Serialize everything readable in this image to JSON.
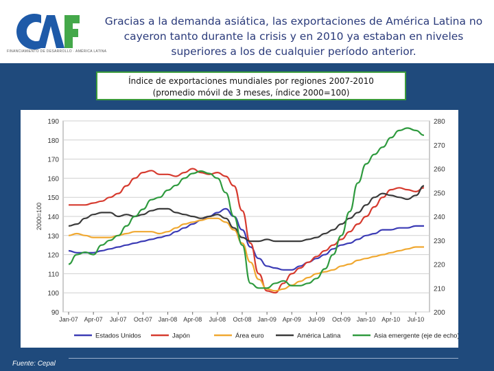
{
  "header": {
    "headline": "Gracias a la demanda asiática, las exportaciones de América Latina no cayeron tanto durante la crisis y en 2010 ya estaban en niveles superiores a los de cualquier período anterior.",
    "logo_text": "CAF",
    "logo_subtitle": "FINANCIAMIENTO DE DESARROLLO · AMÉRICA LATINA"
  },
  "chart_title": {
    "line1": "Índice de exportaciones mundiales por regiones 2007-2010",
    "line2": "(promedio móvil de 3 meses, índice 2000=100)"
  },
  "footer": {
    "source": "Fuente: Cepal"
  },
  "colors": {
    "background": "#1f4a7c",
    "estados_unidos": "#3b3bb5",
    "japon": "#d63a2e",
    "area_euro": "#f0a830",
    "america_latina": "#3a3a3a",
    "asia_emergente": "#2e9a3e",
    "title_border": "#3a9a3a"
  },
  "chart_data": {
    "type": "line",
    "ylabel": "2000=100",
    "ylim": [
      90,
      190
    ],
    "yticks": [
      "90",
      "100",
      "110",
      "120",
      "130",
      "140",
      "150",
      "160",
      "170",
      "180",
      "190"
    ],
    "y2lim": [
      200,
      280
    ],
    "y2ticks": [
      "200",
      "210",
      "220",
      "230",
      "240",
      "250",
      "260",
      "270",
      "280"
    ],
    "xticks": [
      "Jan-07",
      "Apr-07",
      "Jul-07",
      "Oct-07",
      "Jan-08",
      "Apr-08",
      "Jul-08",
      "Oct-08",
      "Jan-09",
      "Apr-09",
      "Jul-09",
      "Oct-09",
      "Jan-10",
      "Apr-10",
      "Jul-10"
    ],
    "x_months": 44,
    "grid": true,
    "legend_position": "bottom",
    "series": [
      {
        "name": "Estados Unidos",
        "color_key": "estados_unidos",
        "axis": "left",
        "values": [
          122,
          121,
          121,
          121,
          122,
          123,
          124,
          125,
          126,
          127,
          128,
          129,
          130,
          132,
          134,
          136,
          138,
          140,
          142,
          144,
          140,
          133,
          124,
          118,
          114,
          113,
          112,
          112,
          114,
          116,
          118,
          120,
          123,
          125,
          126,
          128,
          130,
          131,
          133,
          133,
          134,
          134,
          135,
          135
        ]
      },
      {
        "name": "Japón",
        "color_key": "japon",
        "axis": "left",
        "values": [
          146,
          146,
          146,
          147,
          148,
          150,
          152,
          156,
          160,
          163,
          164,
          162,
          162,
          161,
          163,
          165,
          163,
          162,
          163,
          161,
          156,
          143,
          126,
          110,
          101,
          100,
          105,
          110,
          113,
          116,
          119,
          122,
          125,
          128,
          132,
          136,
          140,
          145,
          150,
          154,
          155,
          154,
          153,
          155
        ]
      },
      {
        "name": "Área euro",
        "color_key": "area_euro",
        "axis": "left",
        "values": [
          130,
          131,
          130,
          129,
          129,
          129,
          130,
          131,
          132,
          132,
          132,
          131,
          132,
          134,
          136,
          137,
          138,
          139,
          139,
          137,
          133,
          126,
          116,
          107,
          102,
          101,
          102,
          104,
          106,
          108,
          110,
          111,
          112,
          114,
          115,
          117,
          118,
          119,
          120,
          121,
          122,
          123,
          124,
          124
        ]
      },
      {
        "name": "América Latina",
        "color_key": "america_latina",
        "axis": "left",
        "values": [
          135,
          136,
          139,
          141,
          142,
          142,
          140,
          141,
          140,
          141,
          143,
          144,
          144,
          142,
          141,
          140,
          139,
          140,
          141,
          139,
          134,
          129,
          127,
          127,
          128,
          127,
          127,
          127,
          127,
          128,
          129,
          131,
          133,
          136,
          139,
          142,
          146,
          150,
          152,
          151,
          150,
          149,
          151,
          156
        ]
      },
      {
        "name": "Asia emergente (eje de echo)",
        "color_key": "asia_emergente",
        "axis": "right",
        "values": [
          220,
          224,
          225,
          224,
          228,
          230,
          232,
          236,
          240,
          243,
          247,
          248,
          251,
          253,
          256,
          258,
          259,
          258,
          256,
          250,
          240,
          228,
          212,
          210,
          210,
          212,
          213,
          211,
          211,
          212,
          214,
          218,
          224,
          232,
          242,
          254,
          262,
          266,
          269,
          273,
          276,
          277,
          276,
          274
        ]
      }
    ]
  }
}
